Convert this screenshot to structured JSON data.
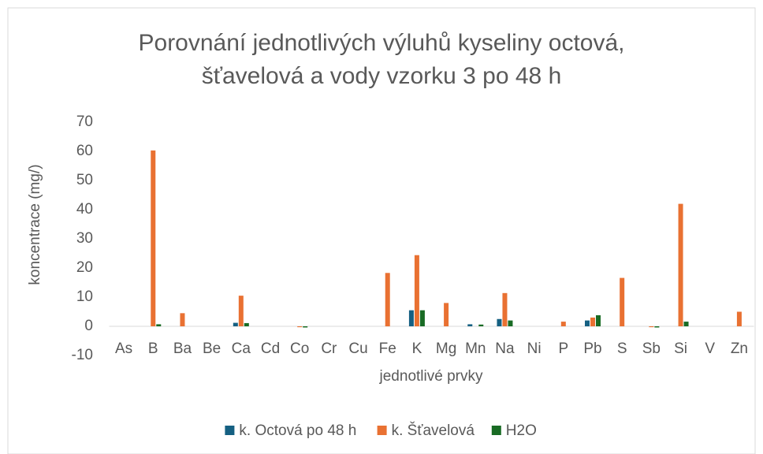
{
  "chart_data": {
    "type": "bar",
    "title": "Porovnání jednotlivých výluhů kyseliny octová,\nšťavelová a vody vzorku 3 po 48 h",
    "xlabel": "jednotlivé prvky",
    "ylabel": "koncentrace (mg/)",
    "categories": [
      "As",
      "B",
      "Ba",
      "Be",
      "Ca",
      "Cd",
      "Co",
      "Cr",
      "Cu",
      "Fe",
      "K",
      "Mg",
      "Mn",
      "Na",
      "Ni",
      "P",
      "Pb",
      "S",
      "Sb",
      "Si",
      "V",
      "Zn"
    ],
    "series": [
      {
        "name": "k. Octová po 48 h",
        "color": "#156082",
        "values": [
          0,
          0,
          0,
          0,
          1.2,
          0,
          0,
          0,
          0,
          0,
          5.5,
          0,
          0.7,
          2.5,
          0,
          0,
          2,
          0,
          0,
          0,
          0,
          0
        ]
      },
      {
        "name": "k. Šťavelová",
        "color": "#e97132",
        "values": [
          0,
          60.3,
          4.5,
          0,
          10.5,
          0,
          -0.3,
          0,
          0,
          18.3,
          24.4,
          8,
          0,
          11.4,
          0,
          1.6,
          3,
          16.6,
          -0.3,
          42,
          0,
          5
        ]
      },
      {
        "name": "H2O",
        "color": "#196b24",
        "values": [
          0,
          0.7,
          0,
          0,
          1.1,
          0,
          -0.4,
          0,
          0,
          0,
          5.5,
          0,
          0.6,
          2,
          0,
          0,
          3.8,
          0,
          -0.4,
          1.6,
          0,
          0
        ]
      }
    ],
    "ylim": [
      -10,
      70
    ],
    "yticks": [
      -10,
      0,
      10,
      20,
      30,
      40,
      50,
      60,
      70
    ],
    "grid": false,
    "legend": "bottom"
  }
}
